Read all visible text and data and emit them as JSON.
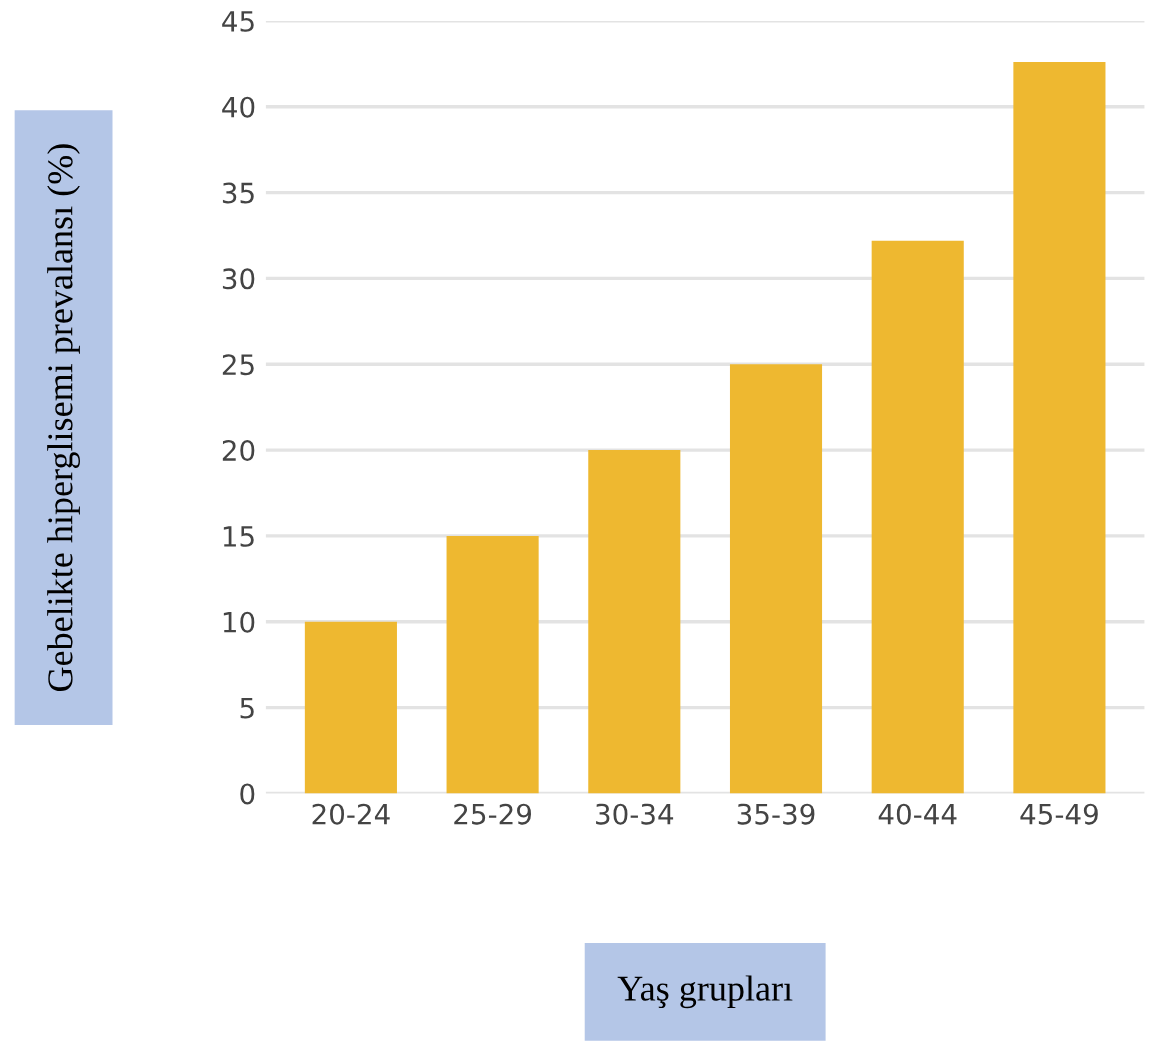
{
  "chart_data": {
    "type": "bar",
    "xlabel": "Yaş grupları",
    "ylabel": "Gebelikte hiperglisemi prevalansı (%)",
    "categories": [
      "20-24",
      "25-29",
      "30-34",
      "35-39",
      "40-44",
      "45-49"
    ],
    "values": [
      10,
      15,
      20,
      25,
      32.2,
      42.6
    ],
    "color": "#eeb830",
    "ylim": [
      0,
      45
    ],
    "yticks": [
      0,
      5,
      10,
      15,
      20,
      25,
      30,
      35,
      40,
      45
    ],
    "grid": "y"
  }
}
